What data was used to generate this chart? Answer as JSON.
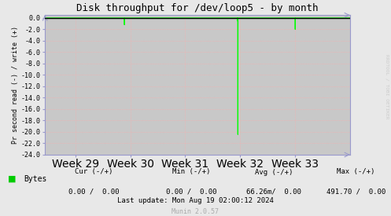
{
  "title": "Disk throughput for /dev/loop5 - by month",
  "ylabel": "Pr second read (-) / write (+)",
  "background_color": "#e8e8e8",
  "plot_background_color": "#c8c8c8",
  "grid_color": "#ffaaaa",
  "x_min": 0,
  "x_max": 100,
  "y_min": -24.0,
  "y_max": 0.5,
  "yticks": [
    0.0,
    -2.0,
    -4.0,
    -6.0,
    -8.0,
    -10.0,
    -12.0,
    -14.0,
    -16.0,
    -18.0,
    -20.0,
    -22.0,
    -24.0
  ],
  "xtick_labels": [
    "Week 29",
    "Week 30",
    "Week 31",
    "Week 32",
    "Week 33"
  ],
  "xtick_positions": [
    10,
    28,
    46,
    64,
    82
  ],
  "line_color": "#00ff00",
  "line_data_x": [
    0,
    26.0,
    26.05,
    26.1,
    63.0,
    63.05,
    63.1,
    63.2,
    63.25,
    63.3,
    82.0,
    82.05,
    82.1,
    100
  ],
  "line_data_y": [
    0,
    0,
    -1.2,
    0,
    0,
    -0.5,
    0,
    0,
    -20.5,
    0,
    0,
    -2.0,
    0,
    0
  ],
  "top_line_color": "#000000",
  "legend_label": "Bytes",
  "legend_color": "#00cc00",
  "stats_cur": "Cur (-/+)",
  "stats_cur_val": "0.00 /  0.00",
  "stats_min": "Min (-/+)",
  "stats_min_val": "0.00 /  0.00",
  "stats_avg": "Avg (-/+)",
  "stats_avg_val": "66.26m/  0.00",
  "stats_max": "Max (-/+)",
  "stats_max_val": "491.70 /  0.00",
  "last_update": "Last update: Mon Aug 19 02:00:12 2024",
  "munin_text": "Munin 2.0.57",
  "rrdtool_text": "RRDTOOL / TOBI OETIKER",
  "arrow_color": "#9999cc",
  "font_family": "DejaVu Sans Mono"
}
